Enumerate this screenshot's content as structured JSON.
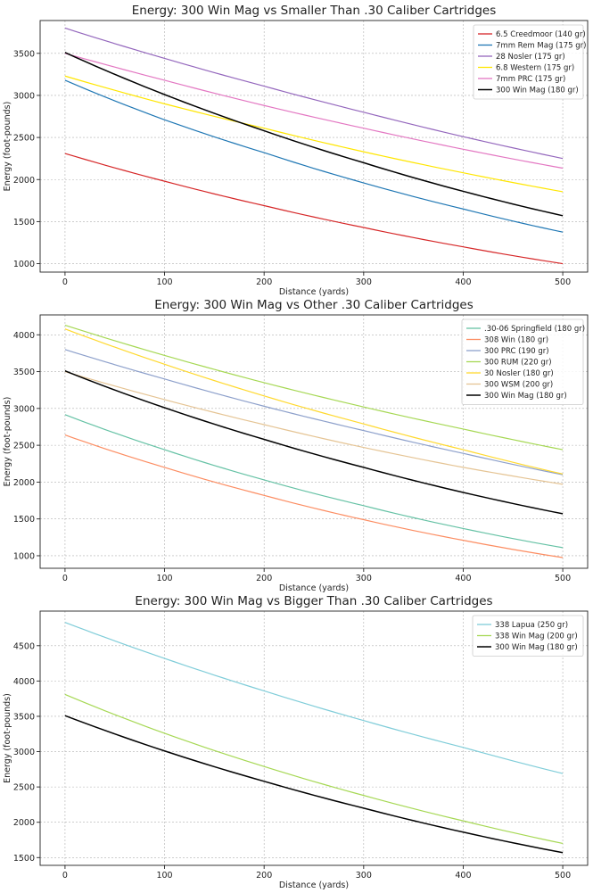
{
  "chart_data": [
    {
      "type": "line",
      "title": "Energy: 300 Win Mag vs Smaller Than .30 Caliber Cartridges",
      "xlabel": "Distance (yards)",
      "ylabel": "Energy (foot-pounds)",
      "xlim": [
        -25,
        525
      ],
      "ylim": [
        900,
        3890
      ],
      "xticks": [
        0,
        100,
        200,
        300,
        400,
        500
      ],
      "yticks": [
        1000,
        1500,
        2000,
        2500,
        3000,
        3500
      ],
      "grid": true,
      "legend_position": "top-right",
      "x": [
        0,
        100,
        200,
        300,
        400,
        500
      ],
      "series": [
        {
          "name": "6.5 Creedmoor (140 gr)",
          "color": "#d62728",
          "values": [
            2310,
            1980,
            1690,
            1430,
            1200,
            1000
          ]
        },
        {
          "name": "7mm Rem Mag (175 gr)",
          "color": "#1f77b4",
          "values": [
            3180,
            2710,
            2320,
            1960,
            1650,
            1375
          ]
        },
        {
          "name": "28 Nosler (175 gr)",
          "color": "#9467bd",
          "values": [
            3800,
            3440,
            3110,
            2800,
            2510,
            2250
          ]
        },
        {
          "name": "6.8 Western (175 gr)",
          "color": "#ffe600",
          "values": [
            3230,
            2900,
            2610,
            2330,
            2080,
            1855
          ]
        },
        {
          "name": "7mm PRC (175 gr)",
          "color": "#e377c2",
          "values": [
            3500,
            3180,
            2880,
            2610,
            2360,
            2135
          ]
        },
        {
          "name": "300 Win Mag (180 gr)",
          "color": "#000000",
          "values": [
            3510,
            3010,
            2580,
            2200,
            1860,
            1570
          ]
        }
      ]
    },
    {
      "type": "line",
      "title": "Energy: 300 Win Mag vs Other .30 Caliber Cartridges",
      "xlabel": "Distance (yards)",
      "ylabel": "Energy (foot-pounds)",
      "xlim": [
        -25,
        525
      ],
      "ylim": [
        830,
        4270
      ],
      "xticks": [
        0,
        100,
        200,
        300,
        400,
        500
      ],
      "yticks": [
        1000,
        1500,
        2000,
        2500,
        3000,
        3500,
        4000
      ],
      "grid": true,
      "legend_position": "top-right",
      "x": [
        0,
        100,
        200,
        300,
        400,
        500
      ],
      "series": [
        {
          "name": ".30-06 Springfield (180 gr)",
          "color": "#66c2a5",
          "values": [
            2915,
            2440,
            2030,
            1680,
            1370,
            1110
          ]
        },
        {
          "name": "308 Win (180 gr)",
          "color": "#fc8d62",
          "values": [
            2640,
            2200,
            1820,
            1490,
            1210,
            975
          ]
        },
        {
          "name": "300 PRC (190 gr)",
          "color": "#8da0cb",
          "values": [
            3800,
            3400,
            3030,
            2700,
            2390,
            2100
          ]
        },
        {
          "name": "300 RUM (220 gr)",
          "color": "#a6d854",
          "values": [
            4130,
            3720,
            3350,
            3020,
            2720,
            2440
          ]
        },
        {
          "name": "30 Nosler (180 gr)",
          "color": "#ffd92f",
          "values": [
            4080,
            3600,
            3170,
            2790,
            2440,
            2110
          ]
        },
        {
          "name": "300 WSM (200 gr)",
          "color": "#e5c494",
          "values": [
            3500,
            3120,
            2780,
            2470,
            2200,
            1970
          ]
        },
        {
          "name": "300 Win Mag (180 gr)",
          "color": "#000000",
          "values": [
            3510,
            3010,
            2580,
            2200,
            1860,
            1570
          ]
        }
      ]
    },
    {
      "type": "line",
      "title": "Energy: 300 Win Mag vs Bigger Than .30 Caliber Cartridges",
      "xlabel": "Distance (yards)",
      "ylabel": "Energy (foot-pounds)",
      "xlim": [
        -25,
        525
      ],
      "ylim": [
        1390,
        4990
      ],
      "xticks": [
        0,
        100,
        200,
        300,
        400,
        500
      ],
      "yticks": [
        1500,
        2000,
        2500,
        3000,
        3500,
        4000,
        4500
      ],
      "grid": true,
      "legend_position": "top-right",
      "x": [
        0,
        100,
        200,
        300,
        400,
        500
      ],
      "series": [
        {
          "name": "338 Lapua (250 gr)",
          "color": "#80cdd9",
          "values": [
            4830,
            4320,
            3860,
            3440,
            3060,
            2690
          ]
        },
        {
          "name": "338 Win Mag (200 gr)",
          "color": "#a6d854",
          "values": [
            3810,
            3260,
            2790,
            2380,
            2020,
            1700
          ]
        },
        {
          "name": "300 Win Mag (180 gr)",
          "color": "#000000",
          "values": [
            3510,
            3010,
            2580,
            2200,
            1860,
            1570
          ]
        }
      ]
    }
  ]
}
